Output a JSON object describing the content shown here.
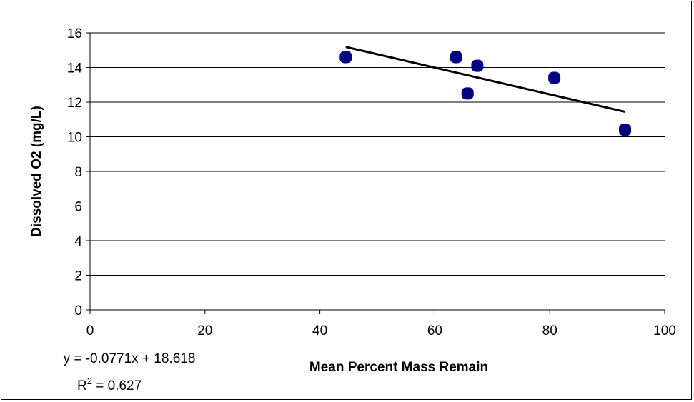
{
  "chart_data": {
    "type": "scatter",
    "xlabel": "Mean Percent Mass Remain",
    "ylabel": "Dissolved O2 (mg/L)",
    "xlim": [
      0,
      100
    ],
    "ylim": [
      0,
      16
    ],
    "x_ticks": [
      0,
      20,
      40,
      60,
      80,
      100
    ],
    "y_ticks": [
      0,
      2,
      4,
      6,
      8,
      10,
      12,
      14,
      16
    ],
    "grid": "horizontal",
    "points": [
      {
        "x": 44.5,
        "y": 14.6
      },
      {
        "x": 63.7,
        "y": 14.6
      },
      {
        "x": 65.7,
        "y": 12.5
      },
      {
        "x": 67.4,
        "y": 14.1
      },
      {
        "x": 80.8,
        "y": 13.4
      },
      {
        "x": 93.1,
        "y": 10.4
      }
    ],
    "marker_color": "#000080",
    "trendline": {
      "slope": -0.0771,
      "intercept": 18.618,
      "x_range": [
        44.5,
        93.1
      ],
      "equation_text": "y = -0.0771x + 18.618",
      "r2_prefix": "R",
      "r2_sup": "2",
      "r2_value": " = 0.627"
    }
  }
}
